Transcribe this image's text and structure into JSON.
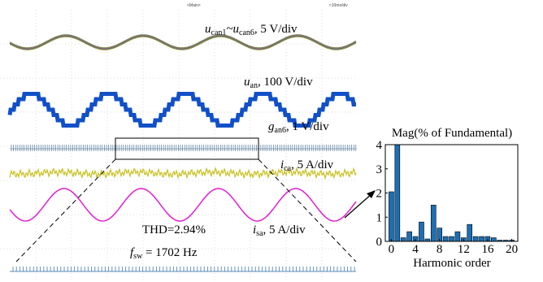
{
  "scope": {
    "header_left": "<Main>",
    "header_right": "≈10ms/div",
    "labels": [
      {
        "parts": [
          "u",
          "can1",
          "~u",
          "can6",
          ", 5 V/div"
        ]
      },
      {
        "parts": [
          "u",
          "an",
          ", 100 V/div"
        ]
      },
      {
        "parts": [
          "g",
          "an6",
          ", 1 V/div"
        ]
      },
      {
        "parts": [
          "i",
          "ca",
          ", 5 A/div"
        ]
      },
      {
        "parts": [
          "i",
          "sa",
          ", 5 A/div"
        ]
      },
      {
        "parts": [
          "f",
          "sw",
          " = 1702 Hz"
        ]
      }
    ],
    "thd": "THD=2.94%"
  },
  "chart_data": {
    "type": "bar",
    "title": "Mag(% of Fundamental)",
    "x_label": "Harmonic order",
    "x": [
      0,
      1,
      2,
      3,
      4,
      5,
      6,
      7,
      8,
      9,
      10,
      11,
      12,
      13,
      14,
      15,
      16,
      17,
      18,
      19,
      20
    ],
    "values": [
      2.05,
      4.0,
      0.15,
      0.4,
      0.2,
      0.8,
      0.1,
      1.5,
      0.55,
      0.2,
      0.2,
      0.4,
      0.15,
      0.7,
      0.2,
      0.2,
      0.2,
      0.15,
      0.05,
      0.05,
      0.05
    ],
    "color": "#1b6fb5",
    "xlim": [
      -1,
      21
    ],
    "ylim": [
      0,
      4
    ],
    "xticks": [
      0,
      4,
      8,
      12,
      16,
      20
    ],
    "yticks": [
      0,
      1,
      2,
      3,
      4
    ]
  }
}
